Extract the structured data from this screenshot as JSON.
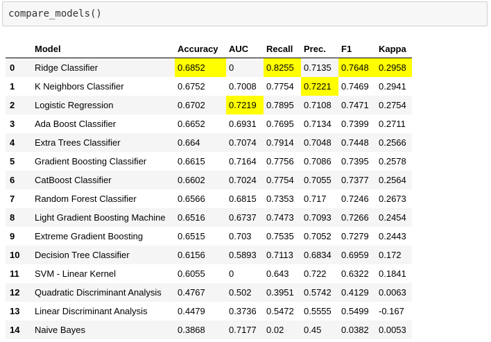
{
  "code_cell": {
    "source": "compare_models()"
  },
  "colors": {
    "highlight": "#ffff00",
    "row_stripe": "#f5f5f5"
  },
  "table": {
    "columns": [
      "",
      "Model",
      "Accuracy",
      "AUC",
      "Recall",
      "Prec.",
      "F1",
      "Kappa"
    ],
    "rows": [
      {
        "index": "0",
        "model": "Ridge Classifier",
        "accuracy": "0.6852",
        "auc": "0",
        "recall": "0.8255",
        "prec": "0.7135",
        "f1": "0.7648",
        "kappa": "0.2958",
        "highlighted": [
          "accuracy",
          "recall",
          "f1",
          "kappa"
        ]
      },
      {
        "index": "1",
        "model": "K Neighbors Classifier",
        "accuracy": "0.6752",
        "auc": "0.7008",
        "recall": "0.7754",
        "prec": "0.7221",
        "f1": "0.7469",
        "kappa": "0.2941",
        "highlighted": [
          "prec"
        ]
      },
      {
        "index": "2",
        "model": "Logistic Regression",
        "accuracy": "0.6702",
        "auc": "0.7219",
        "recall": "0.7895",
        "prec": "0.7108",
        "f1": "0.7471",
        "kappa": "0.2754",
        "highlighted": [
          "auc"
        ]
      },
      {
        "index": "3",
        "model": "Ada Boost Classifier",
        "accuracy": "0.6652",
        "auc": "0.6931",
        "recall": "0.7695",
        "prec": "0.7134",
        "f1": "0.7399",
        "kappa": "0.2711",
        "highlighted": []
      },
      {
        "index": "4",
        "model": "Extra Trees Classifier",
        "accuracy": "0.664",
        "auc": "0.7074",
        "recall": "0.7914",
        "prec": "0.7048",
        "f1": "0.7448",
        "kappa": "0.2566",
        "highlighted": []
      },
      {
        "index": "5",
        "model": "Gradient Boosting Classifier",
        "accuracy": "0.6615",
        "auc": "0.7164",
        "recall": "0.7756",
        "prec": "0.7086",
        "f1": "0.7395",
        "kappa": "0.2578",
        "highlighted": []
      },
      {
        "index": "6",
        "model": "CatBoost Classifier",
        "accuracy": "0.6602",
        "auc": "0.7024",
        "recall": "0.7754",
        "prec": "0.7055",
        "f1": "0.7377",
        "kappa": "0.2564",
        "highlighted": []
      },
      {
        "index": "7",
        "model": "Random Forest Classifier",
        "accuracy": "0.6566",
        "auc": "0.6815",
        "recall": "0.7353",
        "prec": "0.717",
        "f1": "0.7246",
        "kappa": "0.2673",
        "highlighted": []
      },
      {
        "index": "8",
        "model": "Light Gradient Boosting Machine",
        "accuracy": "0.6516",
        "auc": "0.6737",
        "recall": "0.7473",
        "prec": "0.7093",
        "f1": "0.7266",
        "kappa": "0.2454",
        "highlighted": []
      },
      {
        "index": "9",
        "model": "Extreme Gradient Boosting",
        "accuracy": "0.6515",
        "auc": "0.703",
        "recall": "0.7535",
        "prec": "0.7052",
        "f1": "0.7279",
        "kappa": "0.2443",
        "highlighted": []
      },
      {
        "index": "10",
        "model": "Decision Tree Classifier",
        "accuracy": "0.6156",
        "auc": "0.5893",
        "recall": "0.7113",
        "prec": "0.6834",
        "f1": "0.6959",
        "kappa": "0.172",
        "highlighted": []
      },
      {
        "index": "11",
        "model": "SVM - Linear Kernel",
        "accuracy": "0.6055",
        "auc": "0",
        "recall": "0.643",
        "prec": "0.722",
        "f1": "0.6322",
        "kappa": "0.1841",
        "highlighted": []
      },
      {
        "index": "12",
        "model": "Quadratic Discriminant Analysis",
        "accuracy": "0.4767",
        "auc": "0.502",
        "recall": "0.3951",
        "prec": "0.5742",
        "f1": "0.4129",
        "kappa": "0.0063",
        "highlighted": []
      },
      {
        "index": "13",
        "model": "Linear Discriminant Analysis",
        "accuracy": "0.4479",
        "auc": "0.3736",
        "recall": "0.5472",
        "prec": "0.5555",
        "f1": "0.5499",
        "kappa": "-0.167",
        "highlighted": []
      },
      {
        "index": "14",
        "model": "Naive Bayes",
        "accuracy": "0.3868",
        "auc": "0.7177",
        "recall": "0.02",
        "prec": "0.45",
        "f1": "0.0382",
        "kappa": "0.0053",
        "highlighted": []
      }
    ]
  }
}
